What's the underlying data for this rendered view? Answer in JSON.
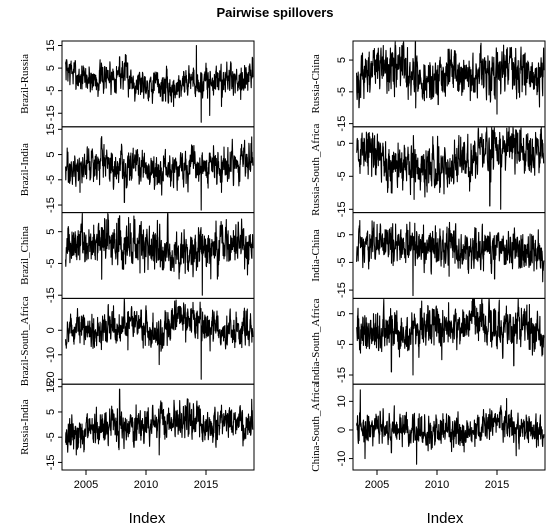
{
  "chart_data": {
    "type": "line",
    "title": "Pairwise spillovers",
    "xlabel": "Index",
    "x_ticks": [
      "2005",
      "2010",
      "2015"
    ],
    "x_range": [
      2003.0,
      2019.0
    ],
    "columns": [
      {
        "panels": [
          {
            "name": "Brazil-Russia",
            "ylim": [
              -21,
              17
            ],
            "ticks": [
              15,
              5,
              -5,
              -15
            ],
            "base": [
              [
                2003.0,
                6
              ],
              [
                2004.5,
                1
              ],
              [
                2006.0,
                0
              ],
              [
                2008.0,
                3
              ],
              [
                2009.0,
                -1
              ],
              [
                2011.0,
                -2
              ],
              [
                2012.0,
                -5
              ],
              [
                2013.5,
                0
              ],
              [
                2015.0,
                -1
              ],
              [
                2017.0,
                0
              ],
              [
                2019.0,
                1
              ]
            ],
            "amp": 5,
            "spikes": [
              [
                2003.2,
                14
              ],
              [
                2007.8,
                10
              ],
              [
                2014.2,
                15
              ],
              [
                2014.6,
                -19
              ],
              [
                2015.3,
                -16
              ],
              [
                2016.3,
                -12
              ]
            ]
          },
          {
            "name": "Brazil-India",
            "ylim": [
              -18,
              16
            ],
            "ticks": [
              15,
              5,
              -5,
              -15
            ],
            "base": [
              [
                2003.0,
                -2
              ],
              [
                2005.0,
                0
              ],
              [
                2008.0,
                1
              ],
              [
                2011.0,
                -1
              ],
              [
                2014.0,
                0
              ],
              [
                2017.0,
                1
              ],
              [
                2019.0,
                4
              ]
            ],
            "amp": 5,
            "spikes": [
              [
                2004.5,
                -10
              ],
              [
                2006.5,
                9
              ],
              [
                2008.2,
                -14
              ],
              [
                2014.6,
                -17
              ],
              [
                2016.3,
                -10
              ],
              [
                2018.8,
                12
              ]
            ]
          },
          {
            "name": "Brazil_China",
            "ylim": [
              -16,
              11
            ],
            "ticks": [
              5,
              -5,
              -15
            ],
            "base": [
              [
                2003.0,
                0
              ],
              [
                2006.0,
                2
              ],
              [
                2009.0,
                1
              ],
              [
                2012.0,
                -1
              ],
              [
                2014.0,
                -2
              ],
              [
                2016.0,
                0
              ],
              [
                2019.0,
                1
              ]
            ],
            "amp": 5,
            "spikes": [
              [
                2006.3,
                -10
              ],
              [
                2007.8,
                10
              ],
              [
                2009.5,
                -8
              ],
              [
                2014.7,
                -15
              ],
              [
                2016.0,
                -9
              ]
            ]
          },
          {
            "name": "Brazil-South_Africa",
            "ylim": [
              -22,
              13
            ],
            "ticks": [
              0,
              -10,
              -20
            ],
            "base": [
              [
                2003.0,
                0
              ],
              [
                2005.0,
                0
              ],
              [
                2007.0,
                2
              ],
              [
                2009.0,
                3
              ],
              [
                2011.0,
                -4
              ],
              [
                2012.5,
                6
              ],
              [
                2013.5,
                5
              ],
              [
                2015.0,
                1
              ],
              [
                2017.0,
                0
              ],
              [
                2019.0,
                -1
              ]
            ],
            "amp": 5,
            "spikes": [
              [
                2007.3,
                10
              ],
              [
                2008.5,
                -8
              ],
              [
                2010.0,
                10
              ],
              [
                2011.1,
                -14
              ],
              [
                2014.6,
                -20
              ],
              [
                2018.2,
                9
              ]
            ]
          },
          {
            "name": "Russia-India",
            "ylim": [
              -18,
              16
            ],
            "ticks": [
              15,
              5,
              -5,
              -15
            ],
            "base": [
              [
                2003.0,
                -4
              ],
              [
                2005.0,
                -3
              ],
              [
                2007.0,
                0
              ],
              [
                2009.0,
                -1
              ],
              [
                2012.0,
                1
              ],
              [
                2015.0,
                0
              ],
              [
                2017.0,
                1
              ],
              [
                2019.0,
                0
              ]
            ],
            "amp": 5,
            "spikes": [
              [
                2004.2,
                -12
              ],
              [
                2007.8,
                14
              ],
              [
                2009.0,
                -9
              ],
              [
                2011.1,
                -12
              ],
              [
                2013.5,
                10
              ],
              [
                2018.8,
                10
              ]
            ]
          }
        ]
      },
      {
        "panels": [
          {
            "name": "Russia-China",
            "ylim": [
              -16,
              11
            ],
            "ticks": [
              5,
              -5,
              -15
            ],
            "base": [
              [
                2003.0,
                -1
              ],
              [
                2005.0,
                3
              ],
              [
                2007.0,
                2
              ],
              [
                2009.0,
                -2
              ],
              [
                2011.0,
                1
              ],
              [
                2014.0,
                0
              ],
              [
                2016.0,
                2
              ],
              [
                2019.0,
                0
              ]
            ],
            "amp": 5,
            "spikes": [
              [
                2003.5,
                -10
              ],
              [
                2004.7,
                8
              ],
              [
                2008.2,
                11
              ],
              [
                2010.1,
                -9
              ],
              [
                2015.0,
                -12
              ],
              [
                2016.2,
                9
              ]
            ]
          },
          {
            "name": "Russia-South_Africa",
            "ylim": [
              -16,
              10
            ],
            "ticks": [
              5,
              -5,
              -15
            ],
            "base": [
              [
                2003.0,
                0
              ],
              [
                2004.5,
                3
              ],
              [
                2006.0,
                -3
              ],
              [
                2008.0,
                -1
              ],
              [
                2010.0,
                -3
              ],
              [
                2012.0,
                0
              ],
              [
                2014.0,
                3
              ],
              [
                2016.0,
                4
              ],
              [
                2019.0,
                2
              ]
            ],
            "amp": 5,
            "spikes": [
              [
                2004.3,
                8
              ],
              [
                2006.2,
                -10
              ],
              [
                2008.1,
                -12
              ],
              [
                2014.4,
                -14
              ],
              [
                2015.3,
                -15
              ],
              [
                2016.9,
                9
              ]
            ]
          },
          {
            "name": "India-China",
            "ylim": [
              -18,
              13
            ],
            "ticks": [
              5,
              -5,
              -15
            ],
            "base": [
              [
                2003.0,
                -1
              ],
              [
                2005.0,
                2
              ],
              [
                2007.0,
                1
              ],
              [
                2009.0,
                0
              ],
              [
                2012.0,
                1
              ],
              [
                2015.0,
                0
              ],
              [
                2017.0,
                -1
              ],
              [
                2019.0,
                -2
              ]
            ],
            "amp": 5,
            "spikes": [
              [
                2004.6,
                10
              ],
              [
                2006.3,
                9
              ],
              [
                2008.0,
                -17
              ],
              [
                2011.0,
                -10
              ],
              [
                2014.8,
                -11
              ],
              [
                2018.8,
                -12
              ]
            ]
          },
          {
            "name": "India-South_Africa",
            "ylim": [
              -18,
              10
            ],
            "ticks": [
              5,
              -5,
              -15
            ],
            "base": [
              [
                2003.0,
                -2
              ],
              [
                2005.0,
                0
              ],
              [
                2007.0,
                -1
              ],
              [
                2009.0,
                2
              ],
              [
                2011.0,
                0
              ],
              [
                2013.0,
                3
              ],
              [
                2015.0,
                0
              ],
              [
                2017.0,
                2
              ],
              [
                2019.0,
                -3
              ]
            ],
            "amp": 5,
            "spikes": [
              [
                2006.2,
                -14
              ],
              [
                2008.0,
                -15
              ],
              [
                2010.4,
                -10
              ],
              [
                2013.6,
                8
              ],
              [
                2016.4,
                -12
              ],
              [
                2017.7,
                8
              ]
            ]
          },
          {
            "name": "China-South_Africa",
            "ylim": [
              -14,
              16
            ],
            "ticks": [
              10,
              0,
              -10
            ],
            "base": [
              [
                2003.0,
                0
              ],
              [
                2005.0,
                1
              ],
              [
                2007.0,
                0
              ],
              [
                2009.0,
                -2
              ],
              [
                2011.0,
                0
              ],
              [
                2013.0,
                -1
              ],
              [
                2015.0,
                3
              ],
              [
                2017.0,
                1
              ],
              [
                2019.0,
                -1
              ]
            ],
            "amp": 4,
            "spikes": [
              [
                2003.6,
                14
              ],
              [
                2004.0,
                -10
              ],
              [
                2006.2,
                -8
              ],
              [
                2008.3,
                -12
              ],
              [
                2015.8,
                11
              ],
              [
                2016.6,
                -9
              ]
            ]
          }
        ]
      }
    ]
  }
}
